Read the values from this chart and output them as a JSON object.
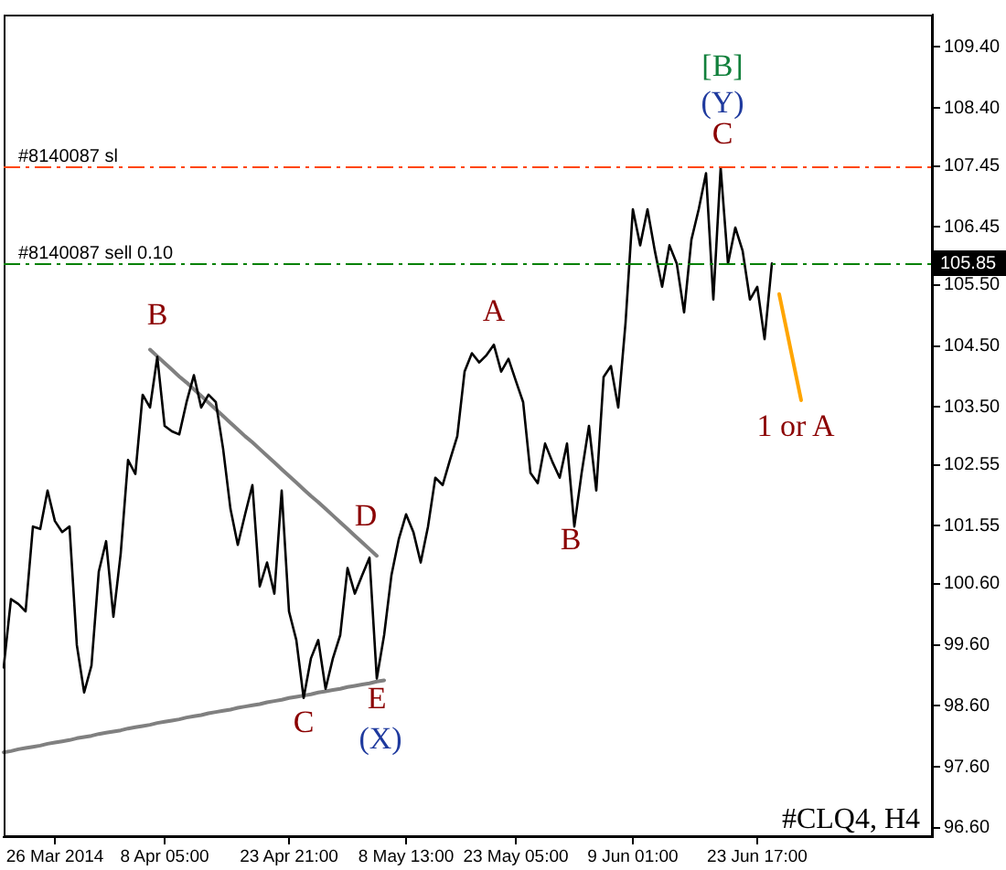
{
  "chart_data": {
    "type": "line",
    "categories": [
      null,
      null,
      null,
      null,
      null,
      null,
      null,
      "26 Mar 2014",
      null,
      null,
      null,
      null,
      null,
      null,
      null,
      null,
      null,
      null,
      null,
      null,
      null,
      null,
      "8 Apr 05:00",
      null,
      null,
      null,
      null,
      null,
      null,
      null,
      null,
      null,
      null,
      null,
      null,
      null,
      null,
      null,
      null,
      "23 Apr 21:00",
      null,
      null,
      null,
      null,
      null,
      null,
      null,
      null,
      null,
      null,
      null,
      null,
      null,
      null,
      null,
      "8 May 13:00",
      null,
      null,
      null,
      null,
      null,
      null,
      null,
      null,
      null,
      null,
      null,
      null,
      null,
      null,
      "23 May 05:00",
      null,
      null,
      null,
      null,
      null,
      null,
      null,
      null,
      null,
      null,
      null,
      null,
      null,
      null,
      null,
      "9 Jun 01:00",
      null,
      null,
      null,
      null,
      null,
      null,
      null,
      null,
      null,
      null,
      null,
      null,
      null,
      null,
      null,
      null,
      "23 Jun 17:00",
      null,
      null,
      null,
      null,
      null,
      null,
      null,
      null,
      null,
      null,
      null,
      null,
      null,
      null,
      null,
      null,
      null,
      null,
      null,
      null,
      null,
      null,
      null,
      null
    ],
    "ylim": [
      96.45,
      109.93
    ],
    "yticks": [
      {
        "value": 109.4,
        "label": "109.40"
      },
      {
        "value": 108.4,
        "label": "108.40"
      },
      {
        "value": 107.45,
        "label": "107.45"
      },
      {
        "value": 106.45,
        "label": "106.45"
      },
      {
        "value": 105.5,
        "label": "105.50"
      },
      {
        "value": 104.5,
        "label": "104.50"
      },
      {
        "value": 103.5,
        "label": "103.50"
      },
      {
        "value": 102.55,
        "label": "102.55"
      },
      {
        "value": 101.55,
        "label": "101.55"
      },
      {
        "value": 100.6,
        "label": "100.60"
      },
      {
        "value": 99.6,
        "label": "99.60"
      },
      {
        "value": 98.6,
        "label": "98.60"
      },
      {
        "value": 97.6,
        "label": "97.60"
      },
      {
        "value": 96.6,
        "label": "96.60"
      }
    ],
    "series": [
      {
        "color": "#000000",
        "values": [
          99.23,
          100.35,
          100.27,
          100.15,
          101.54,
          101.5,
          102.13,
          101.63,
          101.45,
          101.54,
          99.6,
          98.82,
          99.26,
          100.8,
          101.3,
          100.06,
          101.1,
          102.63,
          102.4,
          103.7,
          103.49,
          104.32,
          103.19,
          103.1,
          103.05,
          103.58,
          104.02,
          103.49,
          103.7,
          103.58,
          102.81,
          101.83,
          101.24,
          101.74,
          102.22,
          100.56,
          100.95,
          100.44,
          102.13,
          100.15,
          99.68,
          98.73,
          99.38,
          99.68,
          98.88,
          99.38,
          99.76,
          100.86,
          100.44,
          100.74,
          101.03,
          99.05,
          99.76,
          100.74,
          101.33,
          101.74,
          101.45,
          100.95,
          101.54,
          102.34,
          102.22,
          102.63,
          103.02,
          104.08,
          104.38,
          104.23,
          104.35,
          104.52,
          104.08,
          104.29,
          103.93,
          103.58,
          102.42,
          102.25,
          102.9,
          102.6,
          102.34,
          102.9,
          101.54,
          102.42,
          103.19,
          102.13,
          103.99,
          104.17,
          103.49,
          104.88,
          106.74,
          106.15,
          106.74,
          106.06,
          105.47,
          106.15,
          105.85,
          105.05,
          106.24,
          106.74,
          107.33,
          105.26,
          107.42,
          105.85,
          106.44,
          106.06,
          105.26,
          105.47,
          104.61,
          105.85,
          null,
          null,
          null,
          null,
          null,
          null,
          null,
          null,
          null,
          null,
          null,
          null,
          null,
          null,
          null,
          null,
          null,
          null,
          null,
          null,
          null,
          null
        ]
      },
      {
        "color": "#808080",
        "values": [
          null,
          null,
          null,
          null,
          null,
          null,
          null,
          null,
          null,
          null,
          null,
          null,
          null,
          null,
          null,
          null,
          null,
          null,
          null,
          null,
          104.44,
          104.33,
          104.22,
          104.11,
          104.0,
          103.9,
          103.79,
          103.68,
          103.57,
          103.46,
          103.35,
          103.24,
          103.13,
          103.02,
          102.92,
          102.81,
          102.7,
          102.59,
          102.48,
          102.37,
          102.26,
          102.15,
          102.04,
          101.94,
          101.83,
          101.72,
          101.61,
          101.5,
          101.39,
          101.28,
          101.17,
          101.06,
          null,
          null,
          null,
          null,
          null,
          null,
          null,
          null,
          null,
          null,
          null,
          null,
          null,
          null,
          null,
          null,
          null,
          null,
          null,
          null,
          null,
          null,
          null,
          null,
          null,
          null,
          null,
          null,
          null,
          null,
          null,
          null,
          null,
          null,
          null,
          null,
          null,
          null,
          null,
          null,
          null,
          null,
          null,
          null,
          null,
          null,
          null,
          null,
          null,
          null,
          null,
          null,
          null,
          null,
          null,
          null,
          null,
          null,
          null,
          null,
          null,
          null,
          null,
          null,
          null,
          null,
          null,
          null,
          null,
          null,
          null,
          null,
          null,
          null,
          null,
          null
        ]
      },
      {
        "color": "#808080",
        "values": [
          97.84,
          97.86,
          97.89,
          97.91,
          97.93,
          97.95,
          97.98,
          98.0,
          98.02,
          98.04,
          98.07,
          98.09,
          98.11,
          98.14,
          98.16,
          98.18,
          98.2,
          98.23,
          98.25,
          98.27,
          98.29,
          98.32,
          98.34,
          98.36,
          98.38,
          98.41,
          98.43,
          98.45,
          98.48,
          98.5,
          98.52,
          98.54,
          98.57,
          98.59,
          98.61,
          98.63,
          98.66,
          98.68,
          98.7,
          98.73,
          98.75,
          98.77,
          98.79,
          98.82,
          98.84,
          98.86,
          98.88,
          98.91,
          98.93,
          98.95,
          98.97,
          99.0,
          99.02,
          null,
          null,
          null,
          null,
          null,
          null,
          null,
          null,
          null,
          null,
          null,
          null,
          null,
          null,
          null,
          null,
          null,
          null,
          null,
          null,
          null,
          null,
          null,
          null,
          null,
          null,
          null,
          null,
          null,
          null,
          null,
          null,
          null,
          null,
          null,
          null,
          null,
          null,
          null,
          null,
          null,
          null,
          null,
          null,
          null,
          null,
          null,
          null,
          null,
          null,
          null,
          null,
          null,
          null,
          null,
          null,
          null,
          null,
          null,
          null,
          null,
          null,
          null,
          null,
          null,
          null,
          null,
          null,
          null,
          null,
          null,
          null,
          null,
          null,
          null
        ]
      },
      {
        "color": "#ffa500",
        "values": [
          null,
          null,
          null,
          null,
          null,
          null,
          null,
          null,
          null,
          null,
          null,
          null,
          null,
          null,
          null,
          null,
          null,
          null,
          null,
          null,
          null,
          null,
          null,
          null,
          null,
          null,
          null,
          null,
          null,
          null,
          null,
          null,
          null,
          null,
          null,
          null,
          null,
          null,
          null,
          null,
          null,
          null,
          null,
          null,
          null,
          null,
          null,
          null,
          null,
          null,
          null,
          null,
          null,
          null,
          null,
          null,
          null,
          null,
          null,
          null,
          null,
          null,
          null,
          null,
          null,
          null,
          null,
          null,
          null,
          null,
          null,
          null,
          null,
          null,
          null,
          null,
          null,
          null,
          null,
          null,
          null,
          null,
          null,
          null,
          null,
          null,
          null,
          null,
          null,
          null,
          null,
          null,
          null,
          null,
          null,
          null,
          null,
          null,
          null,
          null,
          null,
          null,
          null,
          null,
          null,
          null,
          105.35,
          104.77,
          104.19,
          103.61,
          null,
          null,
          null,
          null,
          null,
          null,
          null,
          null,
          null,
          null,
          null,
          null,
          null,
          null,
          null,
          null,
          null,
          null
        ]
      }
    ],
    "ref_lines": [
      {
        "axis": "y",
        "value": 107.45,
        "label": "#8140087 sl",
        "color": "#ff4500",
        "line_style": "dashed"
      },
      {
        "axis": "y",
        "value": 105.85,
        "label": "#8140087 sell 0.10",
        "color": "#008000",
        "line_style": "dashed"
      }
    ],
    "annotations": [
      "B",
      "A",
      "D",
      "C",
      "E",
      "(X)",
      "B",
      "[B]",
      "(Y)",
      "C",
      "1 or A",
      {
        "text": "105.85",
        "y": 105.85
      },
      "#CLQ4, H4"
    ],
    "grid": false,
    "legend": false,
    "marker": "none"
  }
}
